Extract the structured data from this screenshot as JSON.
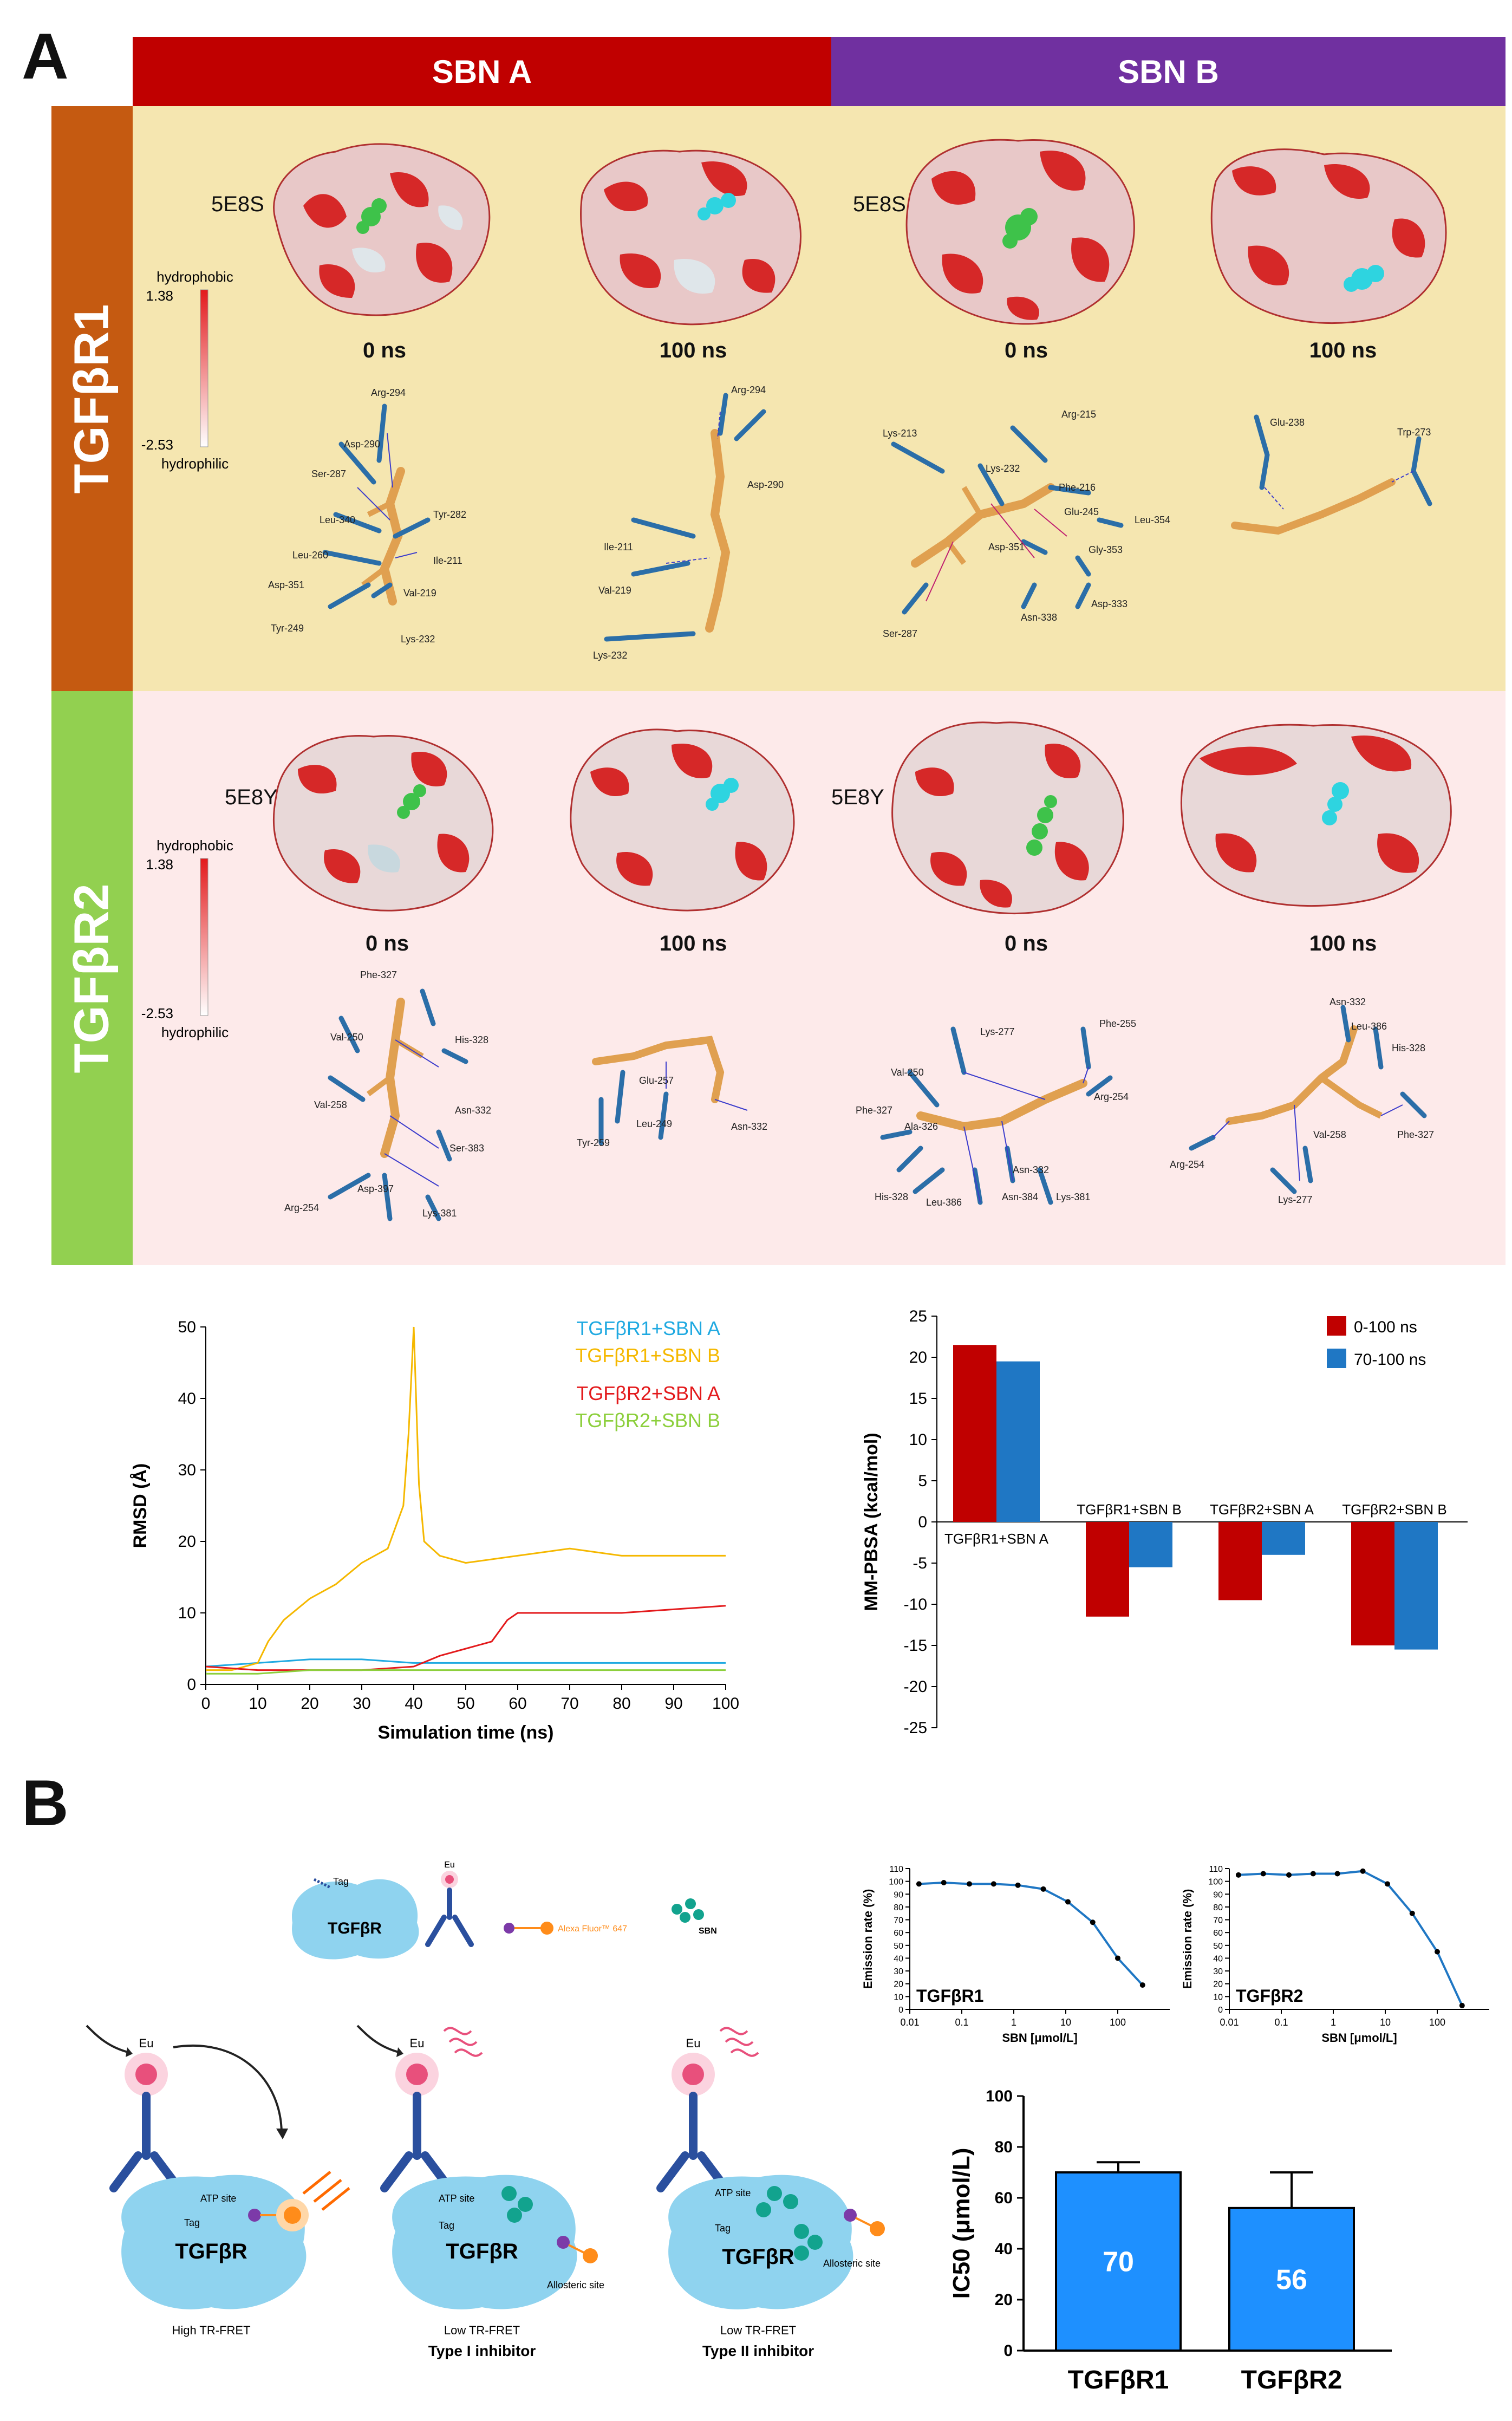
{
  "panel_a": {
    "letter": "A",
    "col_headers": [
      "SBN A",
      "SBN B"
    ],
    "row_labels": [
      "TGFβR1",
      "TGFβR2"
    ],
    "colors": {
      "sbn_a": "#c00000",
      "sbn_b": "#7030a0",
      "tgfbr1": "#c55a11",
      "tgfbr2": "#92d050",
      "row1_bg": "#f5e6b0",
      "row2_bg": "#fdeaea"
    },
    "pdb_ids": {
      "r1": "5E8S",
      "r2": "5E8Y"
    },
    "time_labels": [
      "0 ns",
      "100 ns",
      "0 ns",
      "100 ns"
    ],
    "colorbar": {
      "top_label": "hydrophobic",
      "top_value": "1.38",
      "bottom_value": "-2.53",
      "bottom_label": "hydrophilic"
    },
    "residues": {
      "r1_a_0": [
        "Arg-294",
        "Asp-290",
        "Ser-287",
        "Leu-340",
        "Tyr-282",
        "Ile-211",
        "Leu-260",
        "Val-219",
        "Asp-351",
        "Tyr-249",
        "Lys-232"
      ],
      "r1_a_100": [
        "Arg-294",
        "Asp-290",
        "Ile-211",
        "Val-219",
        "Lys-232"
      ],
      "r1_b_0": [
        "Arg-215",
        "Lys-213",
        "Lys-232",
        "Phe-216",
        "Glu-245",
        "Leu-354",
        "Asp-351",
        "Gly-353",
        "Asn-338",
        "Asp-333",
        "Ser-287"
      ],
      "r1_b_100": [
        "Glu-238",
        "Trp-273"
      ],
      "r2_a_0": [
        "Phe-327",
        "Val-250",
        "His-328",
        "Val-258",
        "Asn-332",
        "Ser-383",
        "Asp-397",
        "Arg-254",
        "Lys-381"
      ],
      "r2_a_100": [
        "Glu-257",
        "Tyr-259",
        "Leu-249",
        "Asn-332"
      ],
      "r2_b_0": [
        "Lys-277",
        "Phe-255",
        "Val-250",
        "Arg-254",
        "Phe-327",
        "Ala-326",
        "Asn-332",
        "His-328",
        "Leu-386",
        "Asn-384",
        "Lys-381"
      ],
      "r2_b_100": [
        "Asn-332",
        "Leu-386",
        "His-328",
        "Phe-327",
        "Val-258",
        "Arg-254",
        "Lys-277"
      ]
    }
  },
  "chart_data": [
    {
      "type": "line",
      "xlabel": "Simulation time (ns)",
      "ylabel": "RMSD (Å)",
      "xlim": [
        0,
        100
      ],
      "ylim": [
        0,
        50
      ],
      "xticks": [
        "0",
        "10",
        "20",
        "30",
        "40",
        "50",
        "60",
        "70",
        "80",
        "90",
        "100"
      ],
      "yticks": [
        "0",
        "10",
        "20",
        "30",
        "40",
        "50"
      ],
      "series": [
        {
          "name": "TGFβR1+SBN A",
          "color": "#1fa9e1",
          "x": [
            0,
            10,
            20,
            30,
            40,
            50,
            60,
            70,
            80,
            90,
            100
          ],
          "values": [
            2.5,
            3,
            3.5,
            3.5,
            3,
            3,
            3,
            3,
            3,
            3,
            3
          ]
        },
        {
          "name": "TGFβR1+SBN B",
          "color": "#f5b800",
          "x": [
            0,
            5,
            10,
            12,
            15,
            20,
            25,
            30,
            35,
            38,
            39,
            40,
            41,
            42,
            45,
            50,
            60,
            70,
            80,
            90,
            100
          ],
          "values": [
            2,
            2,
            3,
            6,
            9,
            12,
            14,
            17,
            19,
            25,
            35,
            50,
            28,
            20,
            18,
            17,
            18,
            19,
            18,
            18,
            18
          ]
        },
        {
          "name": "TGFβR2+SBN A",
          "color": "#e31a1c",
          "x": [
            0,
            10,
            20,
            30,
            40,
            45,
            50,
            55,
            58,
            60,
            65,
            70,
            80,
            90,
            100
          ],
          "values": [
            2.5,
            2,
            2,
            2,
            2.5,
            4,
            5,
            6,
            9,
            10,
            10,
            10,
            10,
            10.5,
            11
          ]
        },
        {
          "name": "TGFβR2+SBN B",
          "color": "#8ccf3c",
          "x": [
            0,
            10,
            20,
            30,
            40,
            50,
            60,
            70,
            80,
            90,
            100
          ],
          "values": [
            1.5,
            1.5,
            2,
            2,
            2,
            2,
            2,
            2,
            2,
            2,
            2
          ]
        }
      ]
    },
    {
      "type": "bar",
      "ylabel": "MM‑PBSA (kcal/mol)",
      "ylim": [
        -25,
        25
      ],
      "yticks": [
        "25",
        "20",
        "15",
        "10",
        "5",
        "0",
        "-5",
        "-10",
        "-15",
        "-20",
        "-25"
      ],
      "categories": [
        "TGFβR1+SBN A",
        "TGFβR1+SBN B",
        "TGFβR2+SBN A",
        "TGFβR2+SBN B"
      ],
      "series": [
        {
          "name": "0-100 ns",
          "color": "#c00000",
          "values": [
            21.5,
            -11.5,
            -9.5,
            -15
          ]
        },
        {
          "name": "70-100 ns",
          "color": "#1f77c4",
          "values": [
            19.5,
            -5.5,
            -4,
            -15.5
          ]
        }
      ]
    },
    {
      "type": "line",
      "title": "TGFβR1",
      "xlabel": "SBN [μmol/L]",
      "ylabel": "Emission rate (%)",
      "ylim": [
        0,
        110
      ],
      "xticks": [
        "0.01",
        "0.1",
        "1",
        "10",
        "100"
      ],
      "yticks": [
        "0",
        "10",
        "20",
        "30",
        "40",
        "50",
        "60",
        "70",
        "80",
        "90",
        "100",
        "110"
      ],
      "x": [
        0.015,
        0.045,
        0.14,
        0.41,
        1.2,
        3.7,
        11,
        33,
        100,
        300
      ],
      "values": [
        98,
        99,
        98,
        98,
        97,
        94,
        84,
        68,
        40,
        19
      ]
    },
    {
      "type": "line",
      "title": "TGFβR2",
      "xlabel": "SBN [μmol/L]",
      "ylabel": "Emission rate (%)",
      "ylim": [
        0,
        110
      ],
      "xticks": [
        "0.01",
        "0.1",
        "1",
        "10",
        "100"
      ],
      "yticks": [
        "0",
        "10",
        "20",
        "30",
        "40",
        "50",
        "60",
        "70",
        "80",
        "90",
        "100",
        "110"
      ],
      "x": [
        0.015,
        0.045,
        0.14,
        0.41,
        1.2,
        3.7,
        11,
        33,
        100,
        300
      ],
      "values": [
        105,
        106,
        105,
        106,
        106,
        108,
        98,
        75,
        45,
        3
      ]
    },
    {
      "type": "bar",
      "ylabel": "IC50 (μmol/L)",
      "ylim": [
        0,
        100
      ],
      "yticks": [
        "0",
        "20",
        "40",
        "60",
        "80",
        "100"
      ],
      "categories": [
        "TGFβR1",
        "TGFβR2"
      ],
      "values": [
        70,
        56
      ],
      "errors": [
        4,
        14
      ],
      "value_labels": [
        "70",
        "56"
      ],
      "color": "#1e90ff"
    }
  ],
  "panel_b": {
    "letter": "B",
    "legend": {
      "tag": "Tag",
      "receptor": "TGFβR",
      "eu": "Eu",
      "dye": "Alexa Fluor™ 647",
      "sbn": "SBN"
    },
    "schemes": [
      {
        "eu": "Eu",
        "atp": "ATP site",
        "tag": "Tag",
        "receptor": "TGFβR",
        "caption": "High TR-FRET",
        "title": ""
      },
      {
        "eu": "Eu",
        "atp": "ATP site",
        "tag": "Tag",
        "receptor": "TGFβR",
        "allosteric": "Allosteric site",
        "caption": "Low TR-FRET",
        "title": "Type I inhibitor"
      },
      {
        "eu": "Eu",
        "atp": "ATP site",
        "tag": "Tag",
        "receptor": "TGFβR",
        "allosteric": "Allosteric site",
        "caption": "Low TR-FRET",
        "title": "Type II inhibitor"
      }
    ],
    "colors": {
      "protein": "#8fd3ef",
      "antibody": "#2a4f9e",
      "eu": "#e8507c",
      "dye": "#ff8c1a",
      "sbn": "#12a38e",
      "linker": "#7c3aa8"
    }
  }
}
